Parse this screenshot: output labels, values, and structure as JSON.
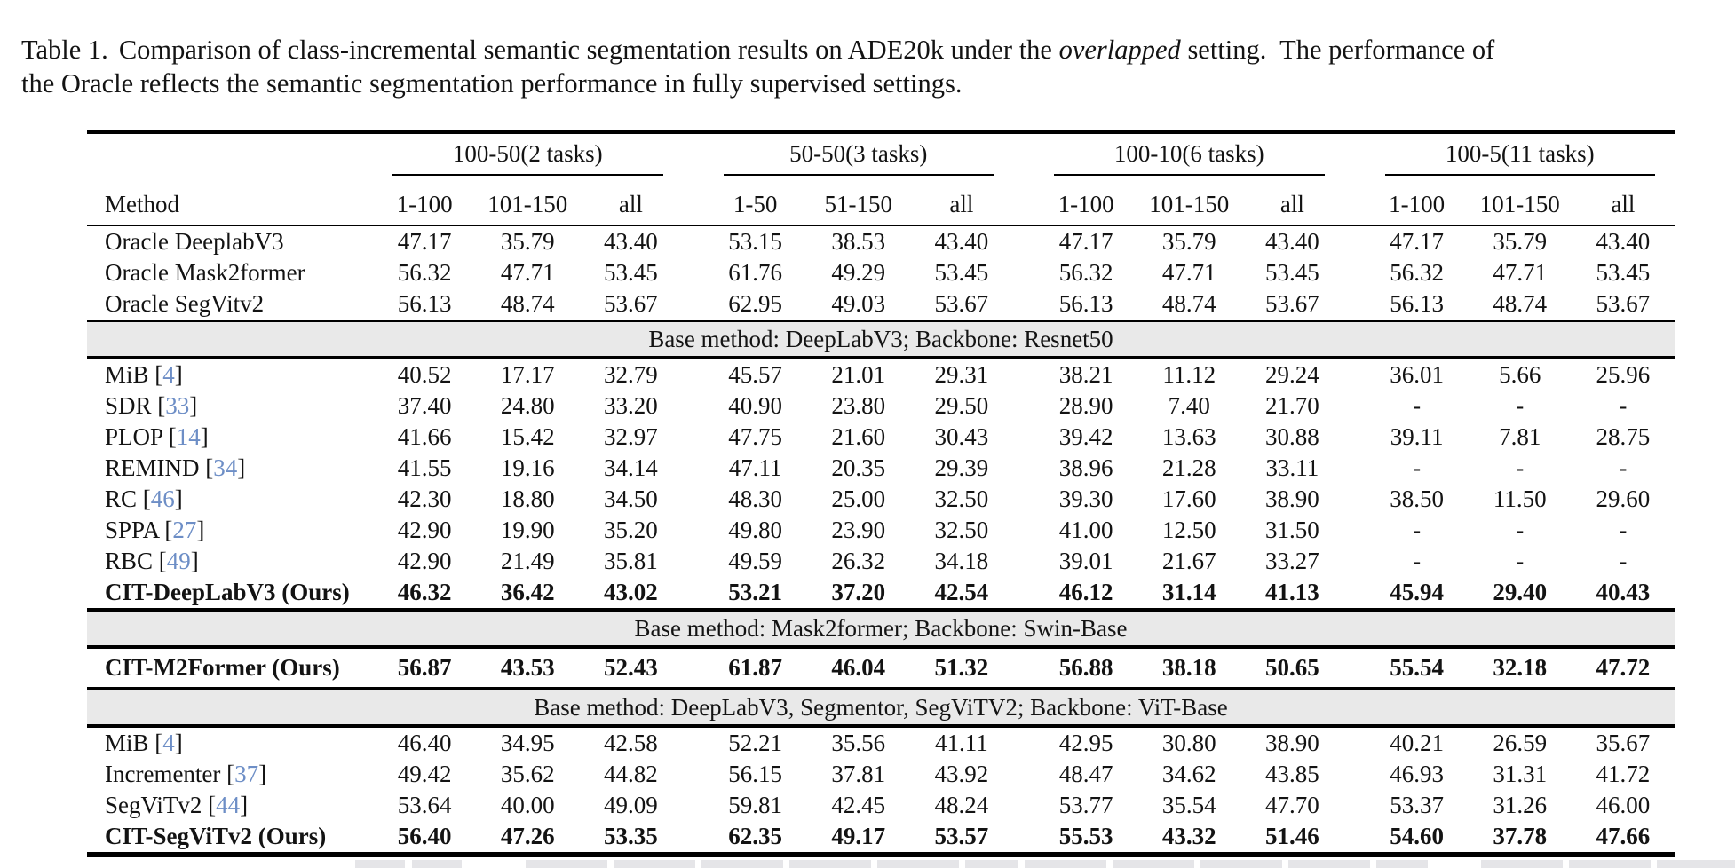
{
  "caption": {
    "label": "Table 1.",
    "line1_mid": "Comparison of class-incremental semantic segmentation results on ADE20k under the ",
    "italic_word": "overlapped",
    "line1_post": " setting.  The performance of",
    "line2": "the Oracle reflects the semantic segmentation performance in fully supervised settings."
  },
  "table": {
    "method_header": "Method",
    "cite_open": "[",
    "cite_close": "]",
    "citation_color": "#6d8ec6",
    "section_band_color": "#e9e9e9",
    "groups": [
      {
        "label": "100-50(2 tasks)",
        "cols": [
          "1-100",
          "101-150",
          "all"
        ]
      },
      {
        "label": "50-50(3 tasks)",
        "cols": [
          "1-50",
          "51-150",
          "all"
        ]
      },
      {
        "label": "100-10(6 tasks)",
        "cols": [
          "1-100",
          "101-150",
          "all"
        ]
      },
      {
        "label": "100-5(11 tasks)",
        "cols": [
          "1-100",
          "101-150",
          "all"
        ]
      }
    ],
    "sections": [
      {
        "banner": null,
        "rows": [
          {
            "method": "Oracle DeeplabV3",
            "cite": null,
            "bold": false,
            "values": [
              "47.17",
              "35.79",
              "43.40",
              "53.15",
              "38.53",
              "43.40",
              "47.17",
              "35.79",
              "43.40",
              "47.17",
              "35.79",
              "43.40"
            ]
          },
          {
            "method": "Oracle Mask2former",
            "cite": null,
            "bold": false,
            "values": [
              "56.32",
              "47.71",
              "53.45",
              "61.76",
              "49.29",
              "53.45",
              "56.32",
              "47.71",
              "53.45",
              "56.32",
              "47.71",
              "53.45"
            ]
          },
          {
            "method": "Oracle SegVitv2",
            "cite": null,
            "bold": false,
            "values": [
              "56.13",
              "48.74",
              "53.67",
              "62.95",
              "49.03",
              "53.67",
              "56.13",
              "48.74",
              "53.67",
              "56.13",
              "48.74",
              "53.67"
            ]
          }
        ]
      },
      {
        "banner": "Base method: DeepLabV3; Backbone: Resnet50",
        "rows": [
          {
            "method": "MiB",
            "cite": "4",
            "bold": false,
            "values": [
              "40.52",
              "17.17",
              "32.79",
              "45.57",
              "21.01",
              "29.31",
              "38.21",
              "11.12",
              "29.24",
              "36.01",
              "5.66",
              "25.96"
            ]
          },
          {
            "method": "SDR",
            "cite": "33",
            "bold": false,
            "values": [
              "37.40",
              "24.80",
              "33.20",
              "40.90",
              "23.80",
              "29.50",
              "28.90",
              "7.40",
              "21.70",
              "-",
              "-",
              "-"
            ]
          },
          {
            "method": "PLOP",
            "cite": "14",
            "bold": false,
            "values": [
              "41.66",
              "15.42",
              "32.97",
              "47.75",
              "21.60",
              "30.43",
              "39.42",
              "13.63",
              "30.88",
              "39.11",
              "7.81",
              "28.75"
            ]
          },
          {
            "method": "REMIND",
            "cite": "34",
            "bold": false,
            "values": [
              "41.55",
              "19.16",
              "34.14",
              "47.11",
              "20.35",
              "29.39",
              "38.96",
              "21.28",
              "33.11",
              "-",
              "-",
              "-"
            ]
          },
          {
            "method": "RC",
            "cite": "46",
            "bold": false,
            "values": [
              "42.30",
              "18.80",
              "34.50",
              "48.30",
              "25.00",
              "32.50",
              "39.30",
              "17.60",
              "38.90",
              "38.50",
              "11.50",
              "29.60"
            ]
          },
          {
            "method": "SPPA",
            "cite": "27",
            "bold": false,
            "values": [
              "42.90",
              "19.90",
              "35.20",
              "49.80",
              "23.90",
              "32.50",
              "41.00",
              "12.50",
              "31.50",
              "-",
              "-",
              "-"
            ]
          },
          {
            "method": "RBC",
            "cite": "49",
            "bold": false,
            "values": [
              "42.90",
              "21.49",
              "35.81",
              "49.59",
              "26.32",
              "34.18",
              "39.01",
              "21.67",
              "33.27",
              "-",
              "-",
              "-"
            ]
          },
          {
            "method": "CIT-DeepLabV3 (Ours)",
            "cite": null,
            "bold": true,
            "values": [
              "46.32",
              "36.42",
              "43.02",
              "53.21",
              "37.20",
              "42.54",
              "46.12",
              "31.14",
              "41.13",
              "45.94",
              "29.40",
              "40.43"
            ]
          }
        ]
      },
      {
        "banner": "Base method: Mask2former; Backbone: Swin-Base",
        "rows": [
          {
            "method": "CIT-M2Former (Ours)",
            "cite": null,
            "bold": true,
            "values": [
              "56.87",
              "43.53",
              "52.43",
              "61.87",
              "46.04",
              "51.32",
              "56.88",
              "38.18",
              "50.65",
              "55.54",
              "32.18",
              "47.72"
            ]
          }
        ]
      },
      {
        "banner": "Base method: DeepLabV3, Segmentor, SegViTV2; Backbone: ViT-Base",
        "rows": [
          {
            "method": "MiB",
            "cite": "4",
            "bold": false,
            "values": [
              "46.40",
              "34.95",
              "42.58",
              "52.21",
              "35.56",
              "41.11",
              "42.95",
              "30.80",
              "38.90",
              "40.21",
              "26.59",
              "35.67"
            ]
          },
          {
            "method": "Incrementer",
            "cite": "37",
            "bold": false,
            "values": [
              "49.42",
              "35.62",
              "44.82",
              "56.15",
              "37.81",
              "43.92",
              "48.47",
              "34.62",
              "43.85",
              "46.93",
              "31.31",
              "41.72"
            ]
          },
          {
            "method": "SegViTv2",
            "cite": "44",
            "bold": false,
            "values": [
              "53.64",
              "40.00",
              "49.09",
              "59.81",
              "42.45",
              "48.24",
              "53.77",
              "35.54",
              "47.70",
              "53.37",
              "31.26",
              "46.00"
            ]
          },
          {
            "method": "CIT-SegViTv2 (Ours)",
            "cite": null,
            "bold": true,
            "values": [
              "56.40",
              "47.26",
              "53.35",
              "62.35",
              "49.17",
              "53.57",
              "55.53",
              "43.32",
              "51.46",
              "54.60",
              "37.78",
              "47.66"
            ]
          }
        ]
      }
    ]
  },
  "partial_next_table": {
    "color": "#e5e5e8",
    "segment_widths": [
      56,
      56,
      92,
      92,
      92,
      92,
      92,
      60,
      92,
      92,
      92,
      92,
      58,
      92,
      92,
      92,
      90
    ],
    "gaps": [
      8,
      72,
      7,
      7,
      7,
      7,
      7,
      7,
      7,
      7,
      7,
      7,
      60,
      7,
      7,
      7,
      0
    ]
  }
}
